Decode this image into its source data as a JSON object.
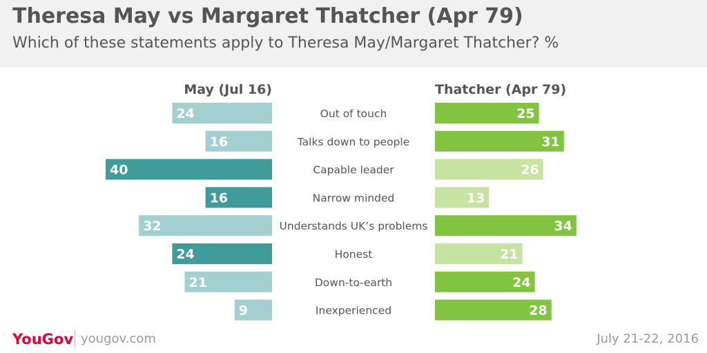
{
  "header": {
    "title": "Theresa May vs Margaret Thatcher (Apr 79)",
    "subtitle": "Which of these statements apply to Theresa May/Margaret Thatcher? %"
  },
  "footer": {
    "logo": "YouGov",
    "url": "yougov.com",
    "date": "July 21-22, 2016"
  },
  "colors": {
    "may_dark": "#3f9c9a",
    "may_light": "#a3cfd1",
    "thatcher_dark": "#82c341",
    "thatcher_light": "#c6e3a1",
    "text": "#555555"
  },
  "chart_data": {
    "type": "bar",
    "categories": [
      "Out of touch",
      "Talks down to people",
      "Capable leader",
      "Narrow minded",
      "Understands UK’s problems",
      "Honest",
      "Down-to-earth",
      "Inexperienced"
    ],
    "series": [
      {
        "name": "May (Jul 16)",
        "values": [
          24,
          16,
          40,
          16,
          32,
          24,
          21,
          9
        ],
        "highlight": [
          false,
          false,
          true,
          true,
          false,
          true,
          false,
          false
        ]
      },
      {
        "name": "Thatcher (Apr 79)",
        "values": [
          25,
          31,
          26,
          13,
          34,
          21,
          24,
          28
        ],
        "highlight": [
          true,
          true,
          false,
          false,
          true,
          false,
          true,
          true
        ]
      }
    ],
    "xlim": [
      0,
      40
    ],
    "grid": false,
    "legend": "column headers"
  }
}
